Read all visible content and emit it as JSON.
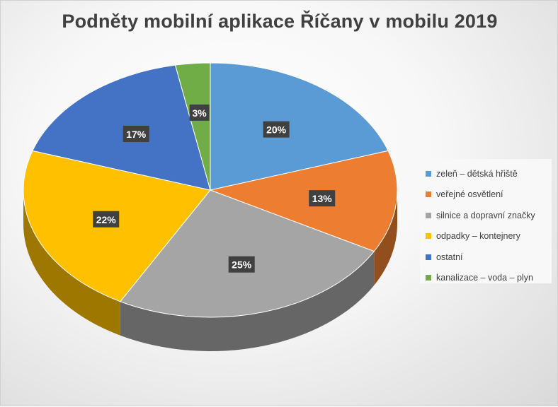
{
  "chart_data": {
    "type": "pie",
    "title": "Podněty mobilní aplikace Říčany v mobilu 2019",
    "categories": [
      "zeleň – dětská hřiště",
      "veřejné osvětlení",
      "silnice a dopravní značky",
      "odpadky – kontejnery",
      "ostatní",
      "kanalizace – voda – plyn"
    ],
    "values": [
      20,
      13,
      25,
      22,
      17,
      3
    ],
    "labels": [
      "20%",
      "13%",
      "25%",
      "22%",
      "17%",
      "3%"
    ],
    "colors": [
      "#5b9bd5",
      "#ed7d31",
      "#a5a5a5",
      "#ffc000",
      "#4472c4",
      "#70ad47"
    ],
    "legend_position": "right",
    "style": "3d"
  }
}
